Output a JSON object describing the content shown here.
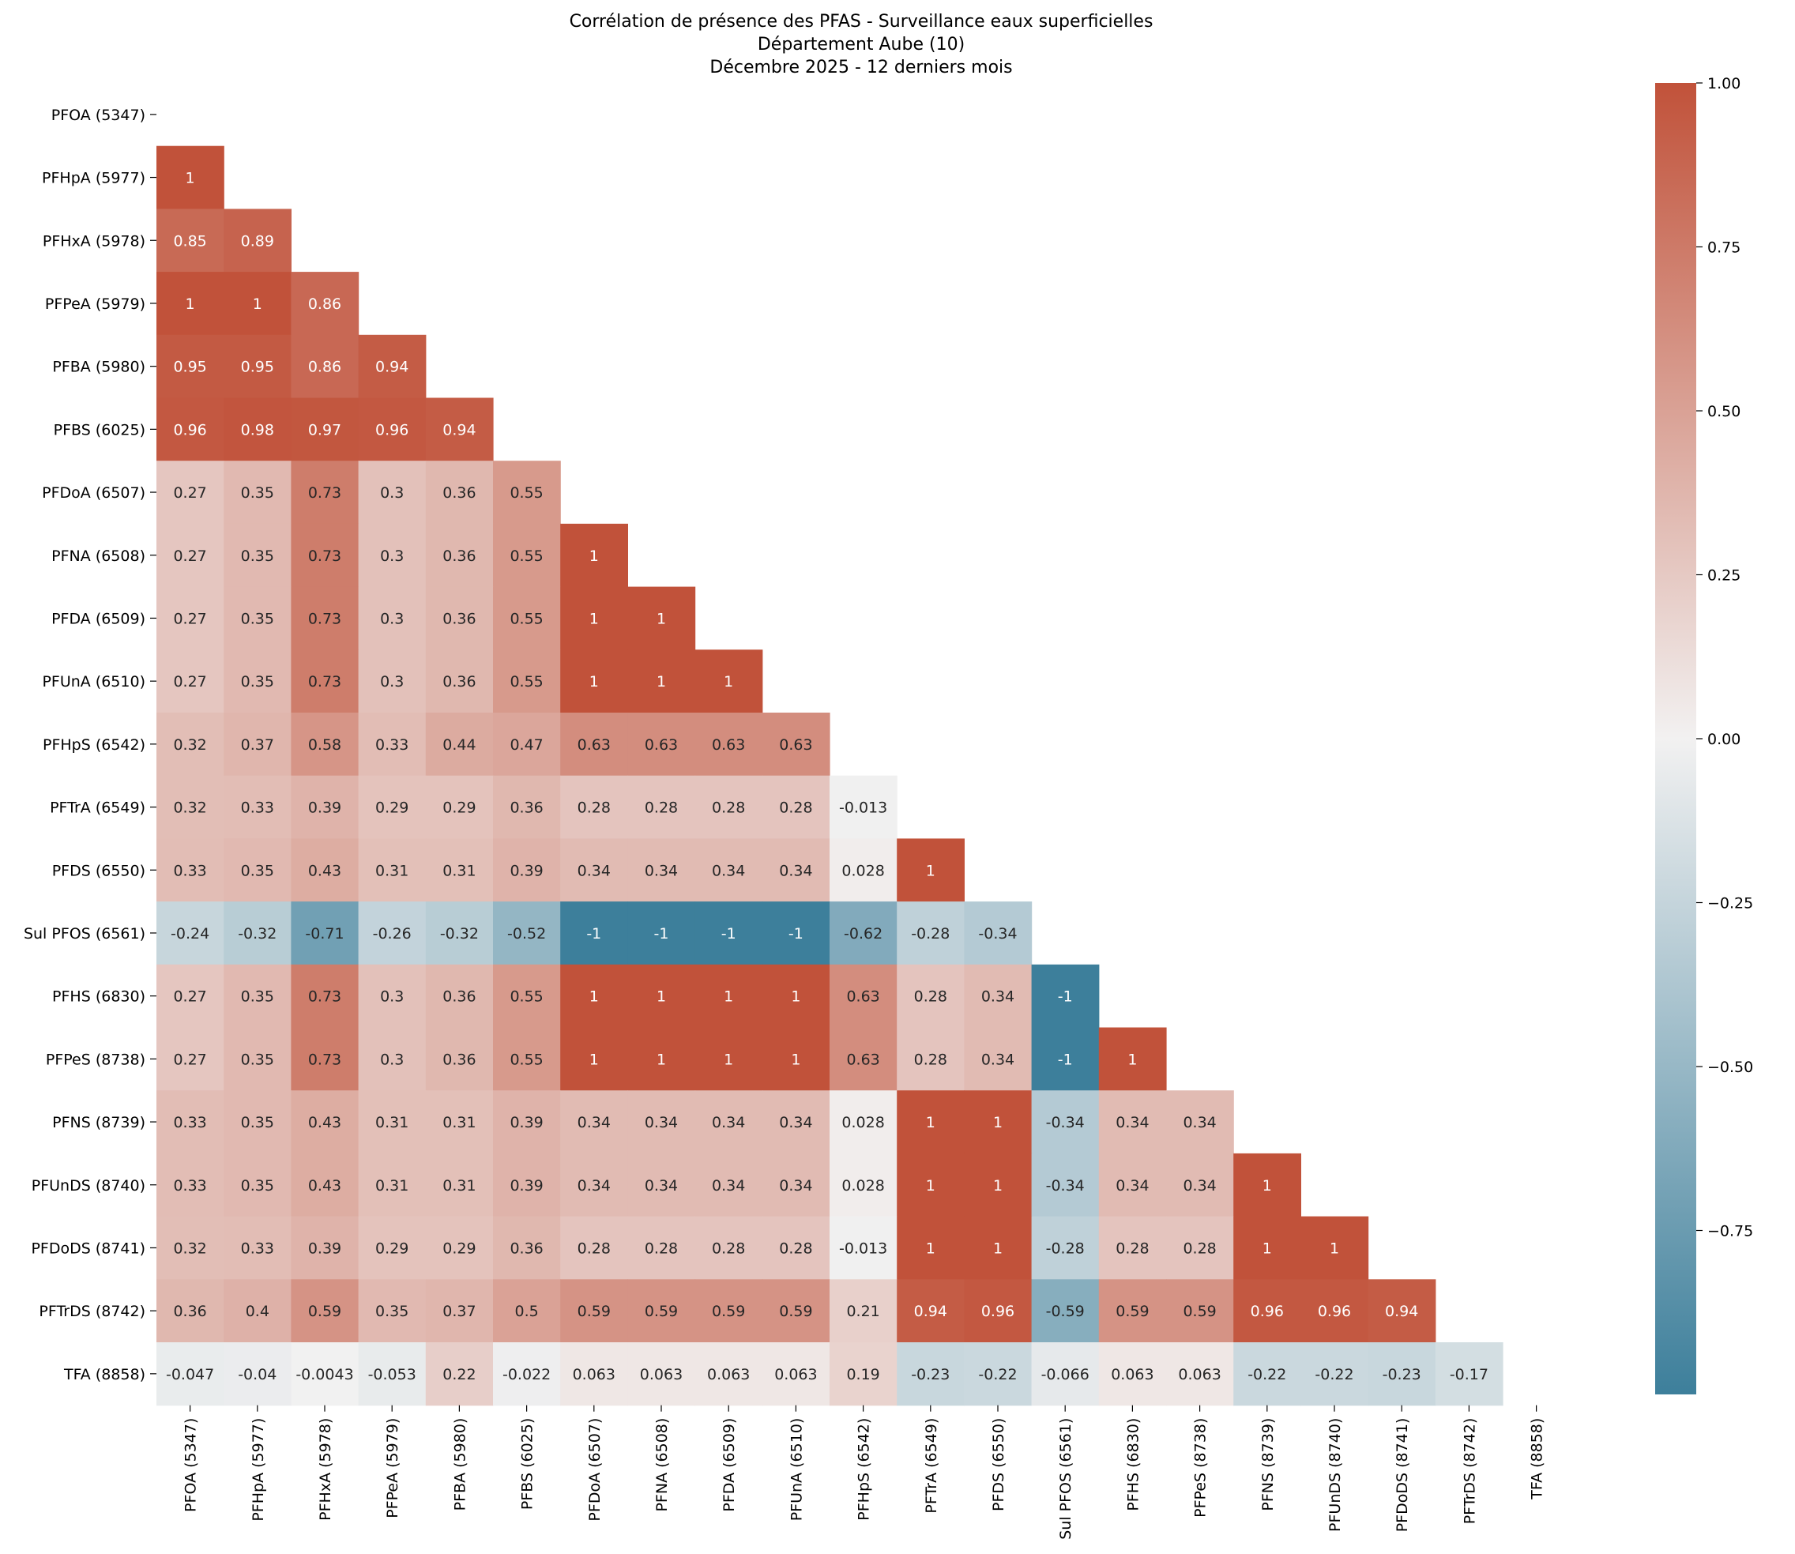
{
  "chart_data": {
    "type": "heatmap",
    "title_lines": [
      "Corrélation de présence des PFAS - Surveillance eaux superficielles",
      "Département Aube (10)",
      "Décembre 2025 - 12 derniers mois"
    ],
    "labels": [
      "PFOA (5347)",
      "PFHpA (5977)",
      "PFHxA (5978)",
      "PFPeA (5979)",
      "PFBA (5980)",
      "PFBS (6025)",
      "PFDoA (6507)",
      "PFNA (6508)",
      "PFDA (6509)",
      "PFUnA (6510)",
      "PFHpS (6542)",
      "PFTrA (6549)",
      "PFDS (6550)",
      "Sul PFOS (6561)",
      "PFHS (6830)",
      "PFPeS (8738)",
      "PFNS (8739)",
      "PFUnDS (8740)",
      "PFDoDS (8741)",
      "PFTrDS (8742)",
      "TFA (8858)"
    ],
    "lower_triangle": [
      [],
      [
        "1"
      ],
      [
        "0.85",
        "0.89"
      ],
      [
        "1",
        "1",
        "0.86"
      ],
      [
        "0.95",
        "0.95",
        "0.86",
        "0.94"
      ],
      [
        "0.96",
        "0.98",
        "0.97",
        "0.96",
        "0.94"
      ],
      [
        "0.27",
        "0.35",
        "0.73",
        "0.3",
        "0.36",
        "0.55"
      ],
      [
        "0.27",
        "0.35",
        "0.73",
        "0.3",
        "0.36",
        "0.55",
        "1"
      ],
      [
        "0.27",
        "0.35",
        "0.73",
        "0.3",
        "0.36",
        "0.55",
        "1",
        "1"
      ],
      [
        "0.27",
        "0.35",
        "0.73",
        "0.3",
        "0.36",
        "0.55",
        "1",
        "1",
        "1"
      ],
      [
        "0.32",
        "0.37",
        "0.58",
        "0.33",
        "0.44",
        "0.47",
        "0.63",
        "0.63",
        "0.63",
        "0.63"
      ],
      [
        "0.32",
        "0.33",
        "0.39",
        "0.29",
        "0.29",
        "0.36",
        "0.28",
        "0.28",
        "0.28",
        "0.28",
        "-0.013"
      ],
      [
        "0.33",
        "0.35",
        "0.43",
        "0.31",
        "0.31",
        "0.39",
        "0.34",
        "0.34",
        "0.34",
        "0.34",
        "0.028",
        "1"
      ],
      [
        "-0.24",
        "-0.32",
        "-0.71",
        "-0.26",
        "-0.32",
        "-0.52",
        "-1",
        "-1",
        "-1",
        "-1",
        "-0.62",
        "-0.28",
        "-0.34"
      ],
      [
        "0.27",
        "0.35",
        "0.73",
        "0.3",
        "0.36",
        "0.55",
        "1",
        "1",
        "1",
        "1",
        "0.63",
        "0.28",
        "0.34",
        "-1"
      ],
      [
        "0.27",
        "0.35",
        "0.73",
        "0.3",
        "0.36",
        "0.55",
        "1",
        "1",
        "1",
        "1",
        "0.63",
        "0.28",
        "0.34",
        "-1",
        "1"
      ],
      [
        "0.33",
        "0.35",
        "0.43",
        "0.31",
        "0.31",
        "0.39",
        "0.34",
        "0.34",
        "0.34",
        "0.34",
        "0.028",
        "1",
        "1",
        "-0.34",
        "0.34",
        "0.34"
      ],
      [
        "0.33",
        "0.35",
        "0.43",
        "0.31",
        "0.31",
        "0.39",
        "0.34",
        "0.34",
        "0.34",
        "0.34",
        "0.028",
        "1",
        "1",
        "-0.34",
        "0.34",
        "0.34",
        "1"
      ],
      [
        "0.32",
        "0.33",
        "0.39",
        "0.29",
        "0.29",
        "0.36",
        "0.28",
        "0.28",
        "0.28",
        "0.28",
        "-0.013",
        "1",
        "1",
        "-0.28",
        "0.28",
        "0.28",
        "1",
        "1"
      ],
      [
        "0.36",
        "0.4",
        "0.59",
        "0.35",
        "0.37",
        "0.5",
        "0.59",
        "0.59",
        "0.59",
        "0.59",
        "0.21",
        "0.94",
        "0.96",
        "-0.59",
        "0.59",
        "0.59",
        "0.96",
        "0.96",
        "0.94"
      ],
      [
        "-0.047",
        "-0.04",
        "-0.0043",
        "-0.053",
        "0.22",
        "-0.022",
        "0.063",
        "0.063",
        "0.063",
        "0.063",
        "0.19",
        "-0.23",
        "-0.22",
        "-0.066",
        "0.063",
        "0.063",
        "-0.22",
        "-0.22",
        "-0.23",
        "-0.17"
      ]
    ],
    "vmin": -1,
    "vmax": 1,
    "colorbar_ticks": [
      {
        "value": 1.0,
        "label": "1.00"
      },
      {
        "value": 0.75,
        "label": "0.75"
      },
      {
        "value": 0.5,
        "label": "0.50"
      },
      {
        "value": 0.25,
        "label": "0.25"
      },
      {
        "value": 0.0,
        "label": "0.00"
      },
      {
        "value": -0.25,
        "label": "−0.25"
      },
      {
        "value": -0.5,
        "label": "−0.50"
      },
      {
        "value": -0.75,
        "label": "−0.75"
      }
    ],
    "colormap": {
      "negative": "#3d7f9b",
      "center": "#f2f1f1",
      "positive": "#c1523a"
    }
  }
}
